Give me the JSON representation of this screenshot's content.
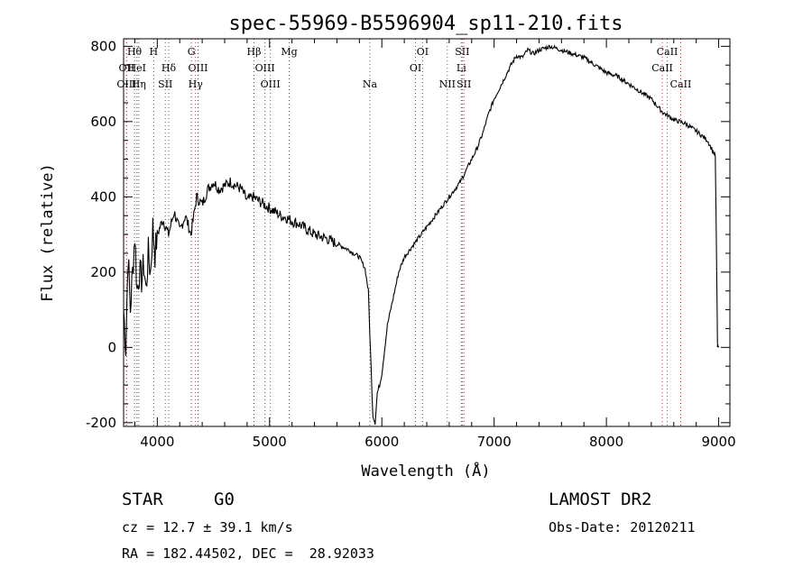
{
  "chart_data": {
    "type": "line",
    "title": "spec-55969-B5596904_sp11-210.fits",
    "xlabel": "Wavelength (Å)",
    "ylabel": "Flux (relative)",
    "xlim": [
      3700,
      9100
    ],
    "ylim": [
      -210,
      820
    ],
    "x_ticks": [
      4000,
      5000,
      6000,
      7000,
      8000,
      9000
    ],
    "y_ticks": [
      -200,
      0,
      200,
      400,
      600,
      800
    ],
    "grid": false,
    "series": [
      {
        "x": [
          3700,
          3720,
          3740,
          3760,
          3780,
          3800,
          3820,
          3840,
          3860,
          3880,
          3900,
          3920,
          3940,
          3960,
          3980,
          4000,
          4050,
          4100,
          4150,
          4200,
          4250,
          4300,
          4350,
          4400,
          4450,
          4500,
          4550,
          4600,
          4650,
          4700,
          4750,
          4800,
          4850,
          4900,
          4950,
          5000,
          5050,
          5100,
          5150,
          5200,
          5250,
          5300,
          5400,
          5500,
          5600,
          5700,
          5800,
          5850,
          5880,
          5900,
          5920,
          5940,
          5960,
          5980,
          6000,
          6050,
          6100,
          6150,
          6200,
          6250,
          6300,
          6350,
          6400,
          6450,
          6500,
          6550,
          6600,
          6650,
          6700,
          6750,
          6800,
          6850,
          6900,
          6950,
          7000,
          7050,
          7100,
          7150,
          7200,
          7250,
          7300,
          7350,
          7400,
          7450,
          7500,
          7550,
          7600,
          7650,
          7700,
          7750,
          7800,
          7850,
          7900,
          7950,
          8000,
          8100,
          8200,
          8300,
          8400,
          8500,
          8600,
          8700,
          8800,
          8900,
          8950,
          8970,
          8990,
          9000
        ],
        "y": [
          100,
          0,
          250,
          100,
          200,
          300,
          150,
          200,
          180,
          220,
          150,
          250,
          200,
          320,
          250,
          300,
          340,
          300,
          360,
          310,
          350,
          300,
          400,
          380,
          420,
          440,
          420,
          430,
          440,
          430,
          420,
          390,
          400,
          390,
          380,
          370,
          360,
          350,
          345,
          335,
          330,
          320,
          300,
          290,
          275,
          260,
          240,
          210,
          150,
          -20,
          -180,
          -200,
          -120,
          -100,
          -70,
          60,
          130,
          200,
          240,
          260,
          280,
          300,
          320,
          340,
          360,
          380,
          400,
          420,
          440,
          470,
          500,
          530,
          570,
          620,
          660,
          690,
          720,
          750,
          775,
          770,
          790,
          780,
          790,
          795,
          800,
          795,
          790,
          785,
          780,
          775,
          770,
          760,
          750,
          740,
          730,
          720,
          700,
          680,
          660,
          625,
          605,
          595,
          575,
          550,
          520,
          510,
          0,
          0
        ]
      }
    ],
    "line_markers": [
      {
        "label": "Hθ",
        "x": 3797,
        "row": 0
      },
      {
        "label": "OII",
        "x": 3727,
        "row": 1
      },
      {
        "label": "OIII",
        "x": 3727,
        "row": 2
      },
      {
        "label": "HeI",
        "x": 3819,
        "row": 1
      },
      {
        "label": "Hη",
        "x": 3835,
        "row": 2
      },
      {
        "label": "H",
        "x": 3968,
        "row": 0
      },
      {
        "label": "Hδ",
        "x": 4102,
        "row": 1
      },
      {
        "label": "SII",
        "x": 4072,
        "row": 2
      },
      {
        "label": "G",
        "x": 4304,
        "row": 0
      },
      {
        "label": "OIII",
        "x": 4363,
        "row": 1
      },
      {
        "label": "Hγ",
        "x": 4341,
        "row": 2
      },
      {
        "label": "Hβ",
        "x": 4861,
        "row": 0
      },
      {
        "label": "OIII",
        "x": 4959,
        "row": 1
      },
      {
        "label": "OIII",
        "x": 5007,
        "row": 2
      },
      {
        "label": "Mg",
        "x": 5175,
        "row": 0
      },
      {
        "label": "Na",
        "x": 5893,
        "row": 2
      },
      {
        "label": "OI",
        "x": 6363,
        "row": 0
      },
      {
        "label": "OI",
        "x": 6300,
        "row": 1
      },
      {
        "label": "NII",
        "x": 6583,
        "row": 2
      },
      {
        "label": "SII",
        "x": 6716,
        "row": 0
      },
      {
        "label": "Li",
        "x": 6708,
        "row": 1
      },
      {
        "label": "SII",
        "x": 6731,
        "row": 2
      },
      {
        "label": "CaII",
        "x": 8542,
        "row": 0
      },
      {
        "label": "CaII",
        "x": 8498,
        "row": 1
      },
      {
        "label": "CaII",
        "x": 8662,
        "row": 2
      }
    ]
  },
  "info": {
    "object_class": "STAR",
    "subclass": "G0",
    "cz": "cz = 12.7 ± 39.1 km/s",
    "coords": "RA = 182.44502, DEC =  28.92033",
    "survey": "LAMOST DR2",
    "obs_date": "Obs-Date: 20120211"
  }
}
